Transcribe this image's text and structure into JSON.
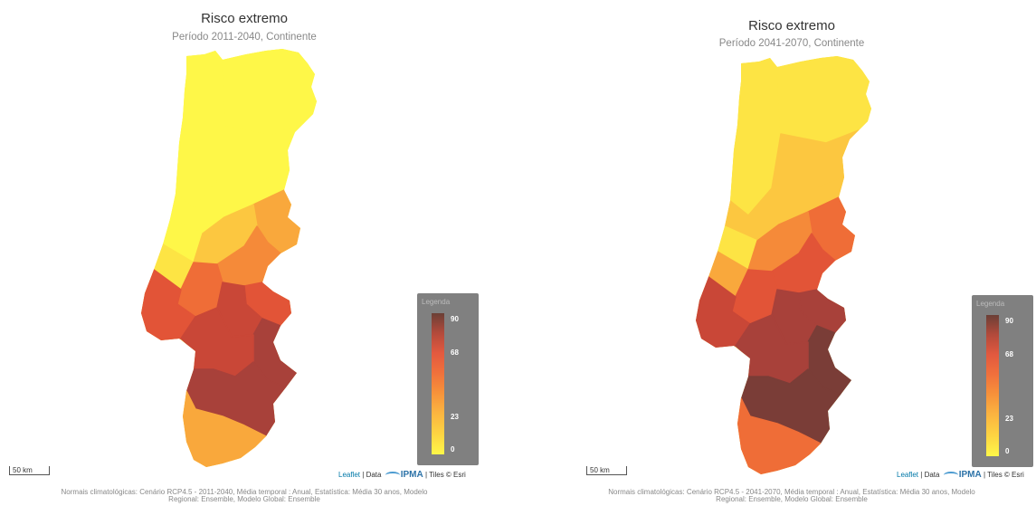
{
  "maps": [
    {
      "title": "Risco extremo",
      "subtitle": "Período 2011-2040, Continente",
      "legend": {
        "title": "Legenda",
        "ticks": [
          "90",
          "68",
          "23",
          "0"
        ]
      },
      "scale_label": "50 km",
      "attribution": {
        "leaflet": "Leaflet",
        "data": "| Data",
        "ipma": "IPMA",
        "tiles": "| Tiles © Esri"
      },
      "footnote": {
        "line1": "Normais climatológicas: Cenário RCP4.5 - 2011-2040, Média temporal : Anual, Estatística: Média 30 anos, Modelo",
        "line2": "Regional: Ensemble, Modelo Global: Ensemble"
      },
      "region_levels": [
        0,
        0,
        0,
        0,
        3,
        0,
        2,
        1,
        4,
        6,
        5,
        7,
        6,
        8,
        7,
        8,
        3
      ]
    },
    {
      "title": "Risco extremo",
      "subtitle": "Período 2041-2070, Continente",
      "legend": {
        "title": "Legenda",
        "ticks": [
          "90",
          "68",
          "23",
          "0"
        ]
      },
      "scale_label": "50 km",
      "attribution": {
        "leaflet": "Leaflet",
        "data": "| Data",
        "ipma": "IPMA",
        "tiles": "| Tiles © Esri"
      },
      "footnote": {
        "line1": "Normais climatológicas: Cenário RCP4.5 - 2041-2070, Média temporal : Anual, Estatística: Média 30 anos, Modelo",
        "line2": "Regional: Ensemble, Modelo Global: Ensemble"
      },
      "region_levels": [
        1,
        1,
        2,
        2,
        5,
        1,
        4,
        3,
        6,
        8,
        6,
        8,
        7,
        9,
        8,
        9,
        5
      ]
    }
  ],
  "colors": {
    "scale": [
      "#fef748",
      "#fde444",
      "#fcc740",
      "#f9a83c",
      "#f58a39",
      "#ef6d37",
      "#e25437",
      "#c94737",
      "#a8413a",
      "#7a3d37"
    ],
    "legend_bg": "#808080"
  }
}
